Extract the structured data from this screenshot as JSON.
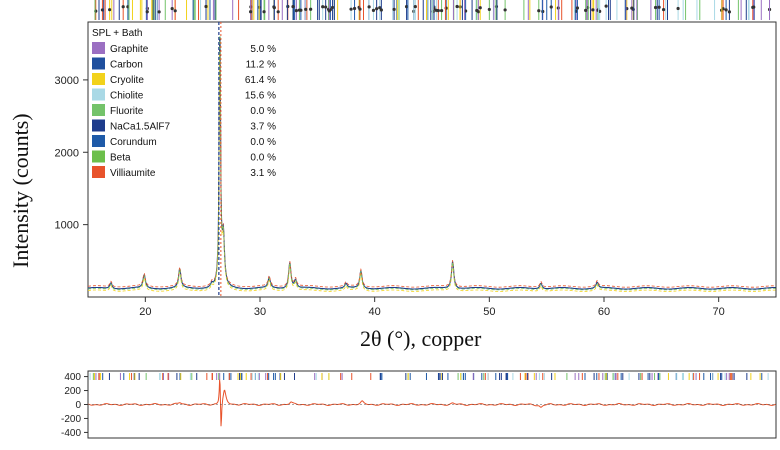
{
  "chart_data": [
    {
      "type": "line",
      "xlabel": "2θ (°), copper",
      "ylabel": "Intensity (counts)",
      "xlim": [
        15,
        75
      ],
      "ylim": [
        0,
        3800
      ],
      "x_ticks": [
        20,
        30,
        40,
        50,
        60,
        70
      ],
      "y_ticks": [
        1000,
        2000,
        3000
      ],
      "legend": {
        "title": "SPL + Bath",
        "placement": "top-left",
        "entries": [
          {
            "name": "Graphite",
            "value": "5.0 %",
            "color": "#9b6fc2"
          },
          {
            "name": "Carbon",
            "value": "11.2 %",
            "color": "#1f4f9e"
          },
          {
            "name": "Cryolite",
            "value": "61.4 %",
            "color": "#f2d21b"
          },
          {
            "name": "Chiolite",
            "value": "15.6 %",
            "color": "#a9d9e6"
          },
          {
            "name": "Fluorite",
            "value": "0.0 %",
            "color": "#74c36a"
          },
          {
            "name": "NaCa1.5AlF7",
            "value": "3.7 %",
            "color": "#1e3c8c"
          },
          {
            "name": "Corundum",
            "value": "0.0 %",
            "color": "#1e5aa8"
          },
          {
            "name": "Beta",
            "value": "0.0 %",
            "color": "#6cbf4b"
          },
          {
            "name": "Villiaumite",
            "value": "3.1 %",
            "color": "#e8532b"
          }
        ]
      },
      "baseline": 120,
      "peaks": [
        {
          "x": 17.0,
          "y": 200
        },
        {
          "x": 19.9,
          "y": 300
        },
        {
          "x": 23.0,
          "y": 380
        },
        {
          "x": 25.8,
          "y": 170
        },
        {
          "x": 26.5,
          "y": 3750
        },
        {
          "x": 26.8,
          "y": 800
        },
        {
          "x": 30.8,
          "y": 260
        },
        {
          "x": 32.6,
          "y": 480
        },
        {
          "x": 33.1,
          "y": 230
        },
        {
          "x": 37.5,
          "y": 180
        },
        {
          "x": 38.8,
          "y": 360
        },
        {
          "x": 46.8,
          "y": 500
        },
        {
          "x": 54.5,
          "y": 200
        },
        {
          "x": 59.4,
          "y": 200
        }
      ],
      "grid": false
    },
    {
      "type": "line",
      "xlim": [
        15,
        75
      ],
      "ylim": [
        -480,
        480
      ],
      "y_ticks": [
        400,
        200,
        0,
        -200,
        -400
      ],
      "residual_peaks": [
        {
          "x": 26.5,
          "y": 480
        },
        {
          "x": 26.6,
          "y": -480
        },
        {
          "x": 26.9,
          "y": 200
        },
        {
          "x": 23.0,
          "y": 25
        },
        {
          "x": 32.7,
          "y": 30
        },
        {
          "x": 38.9,
          "y": 40
        },
        {
          "x": 46.8,
          "y": 15
        },
        {
          "x": 54.5,
          "y": -40
        }
      ],
      "grid": false
    }
  ]
}
